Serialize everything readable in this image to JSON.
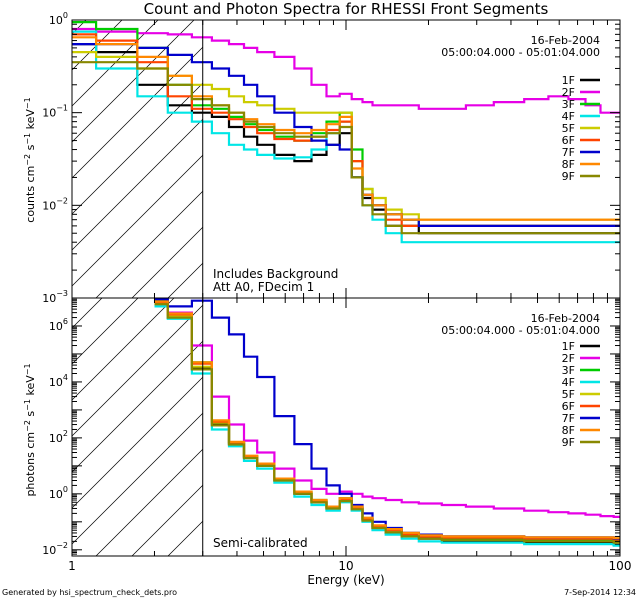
{
  "title": "Count and Photon Spectra for RHESSI Front Segments",
  "footer": {
    "left": "Generated by hsi_spectrum_check_dets.pro",
    "right": "7-Sep-2014 12:34"
  },
  "colors": {
    "1F": "#000000",
    "2F": "#e600e6",
    "3F": "#00cc00",
    "4F": "#00e6e6",
    "5F": "#cccc00",
    "6F": "#ff4400",
    "7F": "#0000cc",
    "8F": "#ff8800",
    "9F": "#888800"
  },
  "chart_data": [
    {
      "type": "line",
      "panel": "counts",
      "title": "Count and Photon Spectra for RHESSI Front Segments",
      "xlabel": "",
      "ylabel": "counts cm^-2 s^-1 keV^-1",
      "xscale": "log",
      "yscale": "log",
      "xlim": [
        1,
        100
      ],
      "ylim": [
        0.001,
        1
      ],
      "ytick_labels": [
        "10^-3",
        "10^-2",
        "10^-1",
        "10^0"
      ],
      "date": "16-Feb-2004",
      "time_range": "05:00:04.000 - 05:01:04.000",
      "annotations": [
        "Includes Background",
        "Att A0, FDecim 1"
      ],
      "attenuator_edge_keV": 3,
      "legend": [
        "1F",
        "2F",
        "3F",
        "4F",
        "5F",
        "6F",
        "7F",
        "8F",
        "9F"
      ],
      "x": [
        1,
        1.5,
        2,
        2.5,
        3,
        3.5,
        4,
        4.5,
        5,
        6,
        7,
        8,
        9,
        10,
        11,
        12,
        13,
        15,
        17,
        20,
        25,
        30,
        40,
        50,
        60,
        70,
        80,
        90,
        100
      ],
      "series": [
        {
          "name": "1F",
          "values": [
            0.55,
            0.45,
            0.2,
            0.12,
            0.1,
            0.09,
            0.07,
            0.055,
            0.045,
            0.035,
            0.03,
            0.035,
            0.045,
            0.06,
            0.02,
            0.012,
            0.009,
            0.006,
            0.006,
            0.005,
            0.005,
            0.005,
            0.005,
            0.005,
            0.005,
            0.005,
            0.005,
            0.005,
            0.005
          ]
        },
        {
          "name": "2F",
          "values": [
            0.8,
            0.75,
            0.72,
            0.7,
            0.65,
            0.6,
            0.55,
            0.5,
            0.45,
            0.4,
            0.3,
            0.2,
            0.15,
            0.16,
            0.14,
            0.13,
            0.12,
            0.12,
            0.12,
            0.11,
            0.11,
            0.12,
            0.13,
            0.14,
            0.15,
            0.14,
            0.12,
            0.1,
            0.1
          ]
        },
        {
          "name": "3F",
          "values": [
            0.95,
            0.8,
            0.5,
            0.2,
            0.12,
            0.11,
            0.09,
            0.075,
            0.065,
            0.055,
            0.05,
            0.06,
            0.08,
            0.1,
            0.04,
            0.015,
            0.01,
            0.008,
            0.007,
            0.006,
            0.006,
            0.006,
            0.006,
            0.006,
            0.006,
            0.006,
            0.006,
            0.006,
            0.006
          ]
        },
        {
          "name": "4F",
          "values": [
            0.75,
            0.3,
            0.15,
            0.1,
            0.08,
            0.06,
            0.045,
            0.04,
            0.035,
            0.032,
            0.033,
            0.04,
            0.06,
            0.08,
            0.02,
            0.01,
            0.007,
            0.005,
            0.004,
            0.004,
            0.004,
            0.004,
            0.004,
            0.004,
            0.004,
            0.004,
            0.004,
            0.004,
            0.004
          ]
        },
        {
          "name": "5F",
          "values": [
            0.45,
            0.4,
            0.3,
            0.25,
            0.2,
            0.18,
            0.15,
            0.13,
            0.12,
            0.11,
            0.1,
            0.1,
            0.1,
            0.1,
            0.03,
            0.015,
            0.012,
            0.009,
            0.008,
            0.007,
            0.007,
            0.007,
            0.007,
            0.007,
            0.007,
            0.007,
            0.007,
            0.007,
            0.007
          ]
        },
        {
          "name": "6F",
          "values": [
            0.7,
            0.6,
            0.35,
            0.15,
            0.11,
            0.1,
            0.085,
            0.07,
            0.06,
            0.052,
            0.05,
            0.055,
            0.065,
            0.08,
            0.03,
            0.013,
            0.01,
            0.007,
            0.006,
            0.006,
            0.006,
            0.006,
            0.006,
            0.006,
            0.006,
            0.006,
            0.006,
            0.006,
            0.006
          ]
        },
        {
          "name": "7F",
          "values": [
            0.55,
            0.55,
            0.5,
            0.42,
            0.35,
            0.3,
            0.25,
            0.2,
            0.15,
            0.1,
            0.07,
            0.05,
            0.045,
            0.04,
            0.02,
            0.013,
            0.01,
            0.008,
            0.007,
            0.006,
            0.006,
            0.006,
            0.006,
            0.006,
            0.006,
            0.006,
            0.006,
            0.006,
            0.006
          ]
        },
        {
          "name": "8F",
          "values": [
            0.65,
            0.55,
            0.4,
            0.25,
            0.15,
            0.12,
            0.1,
            0.085,
            0.075,
            0.065,
            0.06,
            0.065,
            0.075,
            0.09,
            0.025,
            0.013,
            0.01,
            0.008,
            0.007,
            0.007,
            0.007,
            0.007,
            0.007,
            0.007,
            0.007,
            0.007,
            0.007,
            0.007,
            0.007
          ]
        },
        {
          "name": "9F",
          "values": [
            0.35,
            0.35,
            0.3,
            0.2,
            0.14,
            0.12,
            0.1,
            0.08,
            0.07,
            0.06,
            0.055,
            0.055,
            0.06,
            0.07,
            0.02,
            0.01,
            0.008,
            0.006,
            0.005,
            0.005,
            0.005,
            0.005,
            0.005,
            0.005,
            0.005,
            0.005,
            0.005,
            0.005,
            0.005
          ]
        }
      ]
    },
    {
      "type": "line",
      "panel": "photons",
      "xlabel": "Energy (keV)",
      "ylabel": "photons cm^-2 s^-1 keV^-1",
      "xscale": "log",
      "yscale": "log",
      "xlim": [
        1,
        100
      ],
      "ylim": [
        0.006,
        10000000
      ],
      "ytick_labels": [
        "10^-2",
        "10^0",
        "10^2",
        "10^4",
        "10^6"
      ],
      "xtick_labels": [
        "1",
        "10",
        "100"
      ],
      "date": "16-Feb-2004",
      "time_range": "05:00:04.000 - 05:01:04.000",
      "annotations": [
        "Semi-calibrated"
      ],
      "attenuator_edge_keV": 3,
      "legend": [
        "1F",
        "2F",
        "3F",
        "4F",
        "5F",
        "6F",
        "7F",
        "8F",
        "9F"
      ],
      "x": [
        2,
        2.5,
        3,
        3.5,
        4,
        4.5,
        5,
        6,
        7,
        8,
        9,
        10,
        11,
        12,
        13,
        15,
        17,
        20,
        25,
        30,
        40,
        50,
        60,
        70,
        80,
        90,
        100
      ],
      "series": [
        {
          "name": "1F",
          "values": [
            6000000,
            2000000,
            30000,
            300,
            60,
            20,
            10,
            3,
            1,
            0.5,
            0.3,
            0.6,
            0.3,
            0.12,
            0.06,
            0.04,
            0.03,
            0.025,
            0.02,
            0.02,
            0.02,
            0.018,
            0.018,
            0.018,
            0.018,
            0.018,
            0.015
          ]
        },
        {
          "name": "2F",
          "values": [
            7000000,
            3000000,
            200000,
            3000,
            300,
            80,
            30,
            8,
            3,
            1.5,
            1,
            1.2,
            1,
            0.8,
            0.7,
            0.6,
            0.5,
            0.45,
            0.4,
            0.35,
            0.3,
            0.25,
            0.22,
            0.2,
            0.18,
            0.16,
            0.15
          ]
        },
        {
          "name": "3F",
          "values": [
            8000000,
            2500000,
            50000,
            400,
            70,
            22,
            12,
            3.5,
            1.2,
            0.6,
            0.35,
            0.7,
            0.35,
            0.13,
            0.07,
            0.05,
            0.035,
            0.03,
            0.025,
            0.025,
            0.025,
            0.022,
            0.022,
            0.022,
            0.022,
            0.022,
            0.02
          ]
        },
        {
          "name": "4F",
          "values": [
            5000000,
            1800000,
            20000,
            200,
            50,
            15,
            8,
            2.5,
            0.8,
            0.4,
            0.25,
            0.5,
            0.25,
            0.1,
            0.05,
            0.035,
            0.025,
            0.02,
            0.018,
            0.018,
            0.018,
            0.016,
            0.016,
            0.016,
            0.016,
            0.016,
            0.014
          ]
        },
        {
          "name": "5F",
          "values": [
            6500000,
            2200000,
            35000,
            350,
            65,
            22,
            11,
            3.2,
            1.1,
            0.55,
            0.35,
            0.6,
            0.3,
            0.13,
            0.07,
            0.05,
            0.035,
            0.03,
            0.028,
            0.028,
            0.028,
            0.026,
            0.026,
            0.026,
            0.026,
            0.026,
            0.024
          ]
        },
        {
          "name": "6F",
          "values": [
            7000000,
            2600000,
            45000,
            380,
            68,
            21,
            11,
            3.3,
            1.1,
            0.55,
            0.33,
            0.65,
            0.32,
            0.13,
            0.07,
            0.05,
            0.035,
            0.03,
            0.027,
            0.027,
            0.027,
            0.025,
            0.025,
            0.025,
            0.025,
            0.025,
            0.023
          ]
        },
        {
          "name": "7F",
          "values": [
            9000000,
            5000000,
            8000000,
            2000000,
            500000,
            80000,
            15000,
            600,
            60,
            8,
            2,
            1,
            0.4,
            0.2,
            0.1,
            0.06,
            0.04,
            0.035,
            0.03,
            0.03,
            0.03,
            0.028,
            0.028,
            0.028,
            0.028,
            0.028,
            0.025
          ]
        },
        {
          "name": "8F",
          "values": [
            7500000,
            2800000,
            50000,
            420,
            72,
            23,
            12,
            3.5,
            1.2,
            0.6,
            0.35,
            0.7,
            0.35,
            0.14,
            0.075,
            0.055,
            0.04,
            0.033,
            0.03,
            0.03,
            0.03,
            0.028,
            0.028,
            0.028,
            0.028,
            0.028,
            0.026
          ]
        },
        {
          "name": "9F",
          "values": [
            6000000,
            2000000,
            28000,
            280,
            58,
            19,
            10,
            3,
            1,
            0.5,
            0.3,
            0.55,
            0.28,
            0.11,
            0.06,
            0.042,
            0.03,
            0.025,
            0.022,
            0.022,
            0.022,
            0.02,
            0.02,
            0.02,
            0.02,
            0.02,
            0.018
          ]
        }
      ]
    }
  ]
}
